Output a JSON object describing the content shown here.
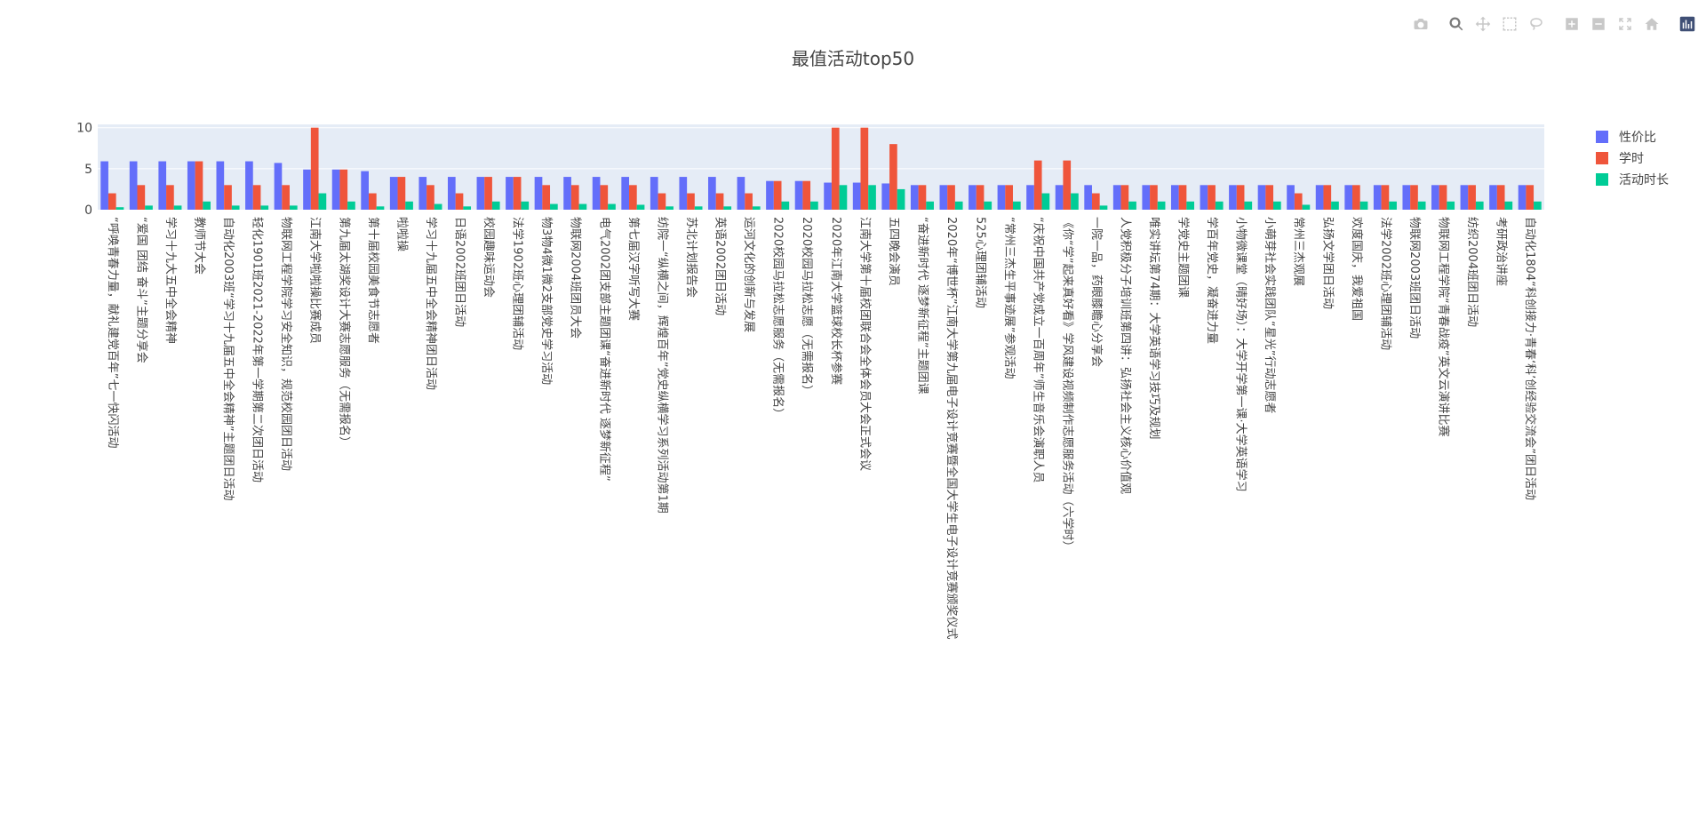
{
  "colors": {
    "series0": "#636efa",
    "series1": "#ef553b",
    "series2": "#00cc96",
    "plot_bg": "#e5ecf6"
  },
  "toolbar": {
    "items": [
      {
        "name": "camera-icon"
      },
      {
        "name": "zoom-icon"
      },
      {
        "name": "pan-icon"
      },
      {
        "name": "box-select-icon"
      },
      {
        "name": "lasso-select-icon"
      },
      {
        "name": "zoom-in-icon"
      },
      {
        "name": "zoom-out-icon"
      },
      {
        "name": "autoscale-icon"
      },
      {
        "name": "reset-axes-icon"
      },
      {
        "name": "plotly-logo-icon"
      }
    ]
  },
  "chart_data": {
    "type": "bar",
    "title": "最值活动top50",
    "xlabel": "",
    "ylabel": "",
    "ylim": [
      0,
      10.4
    ],
    "yticks": [
      0,
      5,
      10
    ],
    "grid": true,
    "legend_position": "top-right",
    "categories": [
      "“呼唤青春力量，献礼建党百年”七一快闪活动",
      "“爱国 团结 奋斗”主题分享会",
      "学习十九大五中全会精神",
      "教师节大会",
      "自动化2003班“学习十九届五中全会精神”主题团日活动",
      "轻化1901班2021-2022年第一学期第二次团日活动",
      "物联网工程学院学习安全知识，规范校园团日活动",
      "江南大学啦啦操比赛成员",
      "第九届太湖奖设计大赛志愿服务（无需报名）",
      "第十届校园美食节志愿者",
      "啦啦操",
      "学习十九届五中全会精神团日活动",
      "日语2002班团日活动",
      "校园趣味运动会",
      "法学1902班心理团辅活动",
      "物3物4微1微2支部党史学习活动",
      "物联网2004班团员大会",
      "电气2002团支部主题团课“奋进新时代 逐梦新征程”",
      "第七届汉字听写大赛",
      "纺院一“纵横之间，辉煌百年”党史纵横学习系列活动第1期",
      "苏北计划报告会",
      "英语2002团日活动",
      "运河文化的创新与发展",
      "2020校园马拉松志愿服务（无需报名）",
      "2020校园马拉松志愿（无需报名）",
      "2020年江南大学篮球校长杯参赛",
      "江南大学第十届校团联合会全体会员大会正式会议",
      "五四晚会演员",
      "“奋进新时代 逐梦新征程”主题团课",
      "2020年“博世杯”江南大学第九届电子设计竞赛暨全国大学生电子设计竞赛颁奖仪式",
      "525心理团辅活动",
      "“常州三杰生平事迹展”参观活动",
      "“庆祝中国共产党成立一百周年”师生音乐会演职人员",
      "《你“学”起来真好看》学风建设视频制作志愿服务活动（六学时）",
      "一院一品，药眼膝瞻心分享会",
      "人党积极分子培训班第四讲：弘扬社会主义核心价值观",
      "唯实讲坛第74期：大学英语学习技巧及规划",
      "学党史主题团课",
      "学百年党史，凝奋进力量",
      "小物微课堂（晴好场）：大学开学第一课·大学英语学习",
      "小萌芽社会实践团队“星光”行动志愿者",
      "常州三杰观展",
      "弘扬文学团日活动",
      "欢度国庆，我爱祖国",
      "法学2002班心理团辅活动",
      "物联网2003班团日活动",
      "物联网工程学院“青春战疫”英文云演讲比赛",
      "纺织2004班团日活动",
      "考研政治讲座",
      "自动化1804“科创接力·青春‘科’创经验交流会”团日活动"
    ],
    "series": [
      {
        "name": "性价比",
        "values": [
          5.9,
          5.9,
          5.9,
          5.9,
          5.9,
          5.9,
          5.7,
          4.9,
          4.9,
          4.7,
          4,
          4,
          4,
          4,
          4,
          4,
          4,
          4,
          4,
          4,
          4,
          4,
          4,
          3.5,
          3.5,
          3.3,
          3.3,
          3.2,
          3,
          3,
          3,
          3,
          3,
          3,
          3,
          3,
          3,
          3,
          3,
          3,
          3,
          3,
          3,
          3,
          3,
          3,
          3,
          3,
          3,
          3
        ]
      },
      {
        "name": "学时",
        "values": [
          2,
          3,
          3,
          5.9,
          3,
          3,
          3,
          10,
          4.9,
          2,
          4,
          3,
          2,
          4,
          4,
          3,
          3,
          3,
          3,
          2,
          2,
          2,
          2,
          3.5,
          3.5,
          10,
          10,
          8,
          3,
          3,
          3,
          3,
          6,
          6,
          2,
          3,
          3,
          3,
          3,
          3,
          3,
          2,
          3,
          3,
          3,
          3,
          3,
          3,
          3,
          3
        ]
      },
      {
        "name": "活动时长",
        "values": [
          0.3,
          0.5,
          0.5,
          1,
          0.5,
          0.5,
          0.5,
          2,
          1,
          0.4,
          1,
          0.7,
          0.4,
          1,
          1,
          0.7,
          0.7,
          0.7,
          0.6,
          0.4,
          0.4,
          0.4,
          0.4,
          1,
          1,
          3,
          3,
          2.5,
          1,
          1,
          1,
          1,
          2,
          2,
          0.5,
          1,
          1,
          1,
          1,
          1,
          1,
          0.6,
          1,
          1,
          1,
          1,
          1,
          1,
          1,
          1
        ]
      }
    ]
  }
}
